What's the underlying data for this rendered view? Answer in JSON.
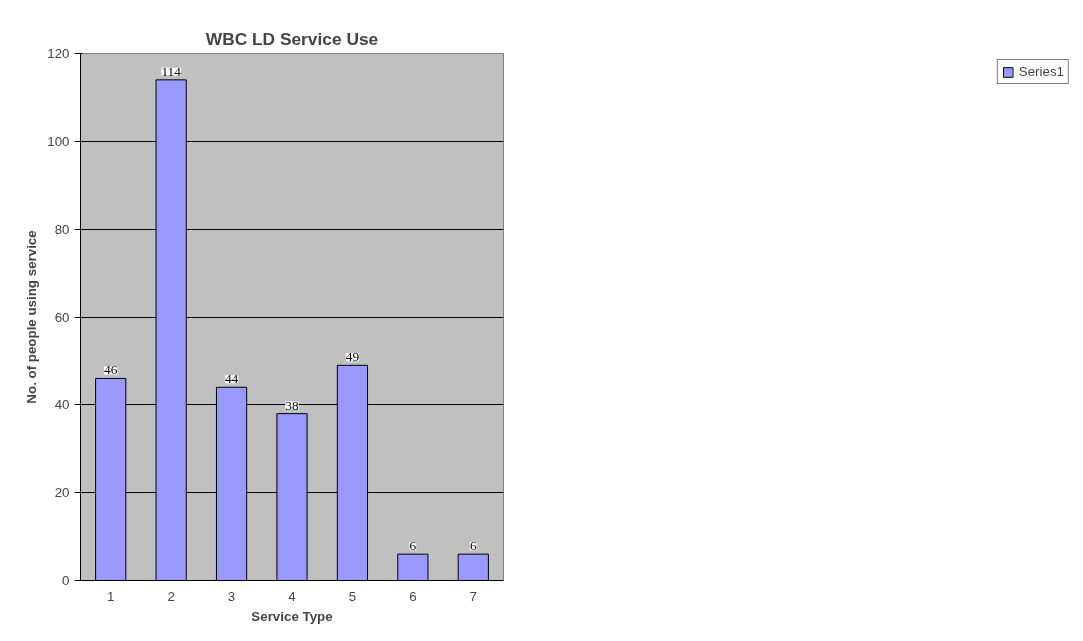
{
  "chart_data": {
    "type": "bar",
    "title": "WBC LD Service Use",
    "xlabel": "Service Type",
    "ylabel": "No. of people using service",
    "categories": [
      "1",
      "2",
      "3",
      "4",
      "5",
      "6",
      "7"
    ],
    "series": [
      {
        "name": "Series1",
        "color": "#9999ff",
        "values": [
          46,
          114,
          44,
          38,
          49,
          6,
          6
        ]
      }
    ],
    "ylim": [
      0,
      120
    ],
    "yticks": [
      0,
      20,
      40,
      60,
      80,
      100,
      120
    ],
    "grid": "y",
    "legend": "right",
    "data_labels": true
  }
}
